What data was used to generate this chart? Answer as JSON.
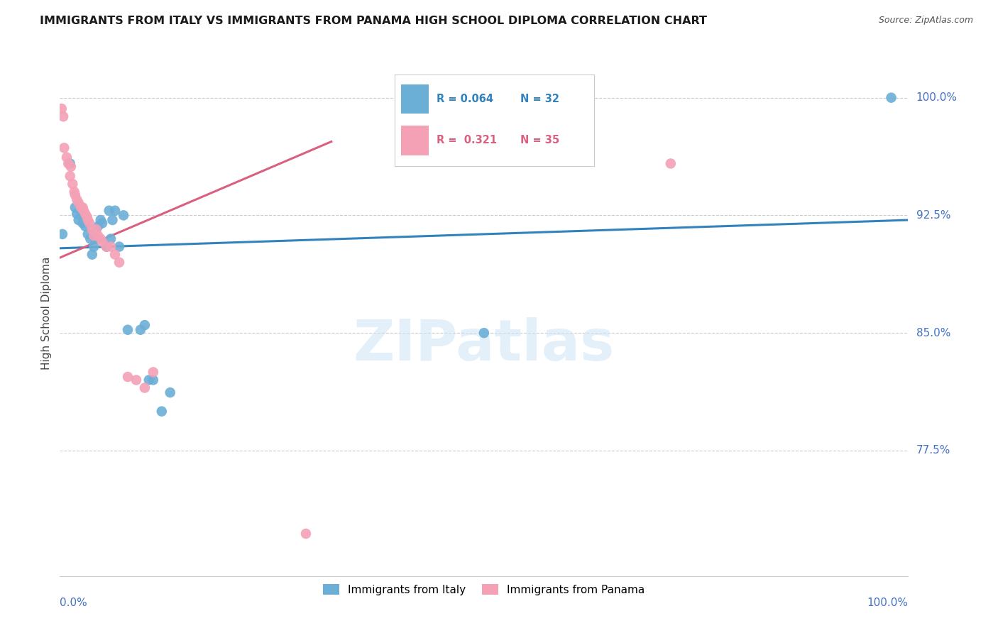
{
  "title": "IMMIGRANTS FROM ITALY VS IMMIGRANTS FROM PANAMA HIGH SCHOOL DIPLOMA CORRELATION CHART",
  "source": "Source: ZipAtlas.com",
  "ylabel": "High School Diploma",
  "ytick_labels": [
    "100.0%",
    "92.5%",
    "85.0%",
    "77.5%"
  ],
  "ytick_values": [
    1.0,
    0.925,
    0.85,
    0.775
  ],
  "xlim": [
    0.0,
    1.0
  ],
  "ylim": [
    0.695,
    1.03
  ],
  "legend_italy_R": "0.064",
  "legend_italy_N": "32",
  "legend_panama_R": "0.321",
  "legend_panama_N": "35",
  "italy_color": "#6baed6",
  "panama_color": "#f4a0b5",
  "italy_line_color": "#3182bd",
  "panama_line_color": "#d9607e",
  "axis_color": "#4472c4",
  "italy_x": [
    0.003,
    0.012,
    0.018,
    0.02,
    0.022,
    0.025,
    0.027,
    0.03,
    0.033,
    0.036,
    0.038,
    0.04,
    0.042,
    0.045,
    0.048,
    0.05,
    0.055,
    0.058,
    0.06,
    0.062,
    0.065,
    0.07,
    0.075,
    0.08,
    0.095,
    0.1,
    0.105,
    0.11,
    0.12,
    0.13,
    0.5,
    0.98
  ],
  "italy_y": [
    0.913,
    0.958,
    0.93,
    0.926,
    0.922,
    0.925,
    0.92,
    0.918,
    0.913,
    0.91,
    0.9,
    0.905,
    0.91,
    0.918,
    0.922,
    0.92,
    0.905,
    0.928,
    0.91,
    0.922,
    0.928,
    0.905,
    0.925,
    0.852,
    0.852,
    0.855,
    0.82,
    0.82,
    0.8,
    0.812,
    0.85,
    1.0
  ],
  "panama_x": [
    0.002,
    0.004,
    0.005,
    0.008,
    0.01,
    0.012,
    0.013,
    0.015,
    0.017,
    0.018,
    0.02,
    0.022,
    0.025,
    0.027,
    0.028,
    0.03,
    0.032,
    0.033,
    0.035,
    0.038,
    0.04,
    0.043,
    0.045,
    0.048,
    0.05,
    0.055,
    0.06,
    0.065,
    0.07,
    0.08,
    0.09,
    0.1,
    0.11,
    0.29,
    0.72
  ],
  "panama_y": [
    0.993,
    0.988,
    0.968,
    0.962,
    0.958,
    0.95,
    0.956,
    0.945,
    0.94,
    0.938,
    0.935,
    0.933,
    0.93,
    0.93,
    0.928,
    0.926,
    0.924,
    0.922,
    0.92,
    0.916,
    0.912,
    0.916,
    0.912,
    0.91,
    0.908,
    0.905,
    0.905,
    0.9,
    0.895,
    0.822,
    0.82,
    0.815,
    0.825,
    0.722,
    0.958
  ],
  "italy_trend_x": [
    0.0,
    1.0
  ],
  "italy_trend_y": [
    0.904,
    0.922
  ],
  "panama_trend_x": [
    0.0,
    0.32
  ],
  "panama_trend_y": [
    0.898,
    0.972
  ],
  "watermark": "ZIPatlas"
}
